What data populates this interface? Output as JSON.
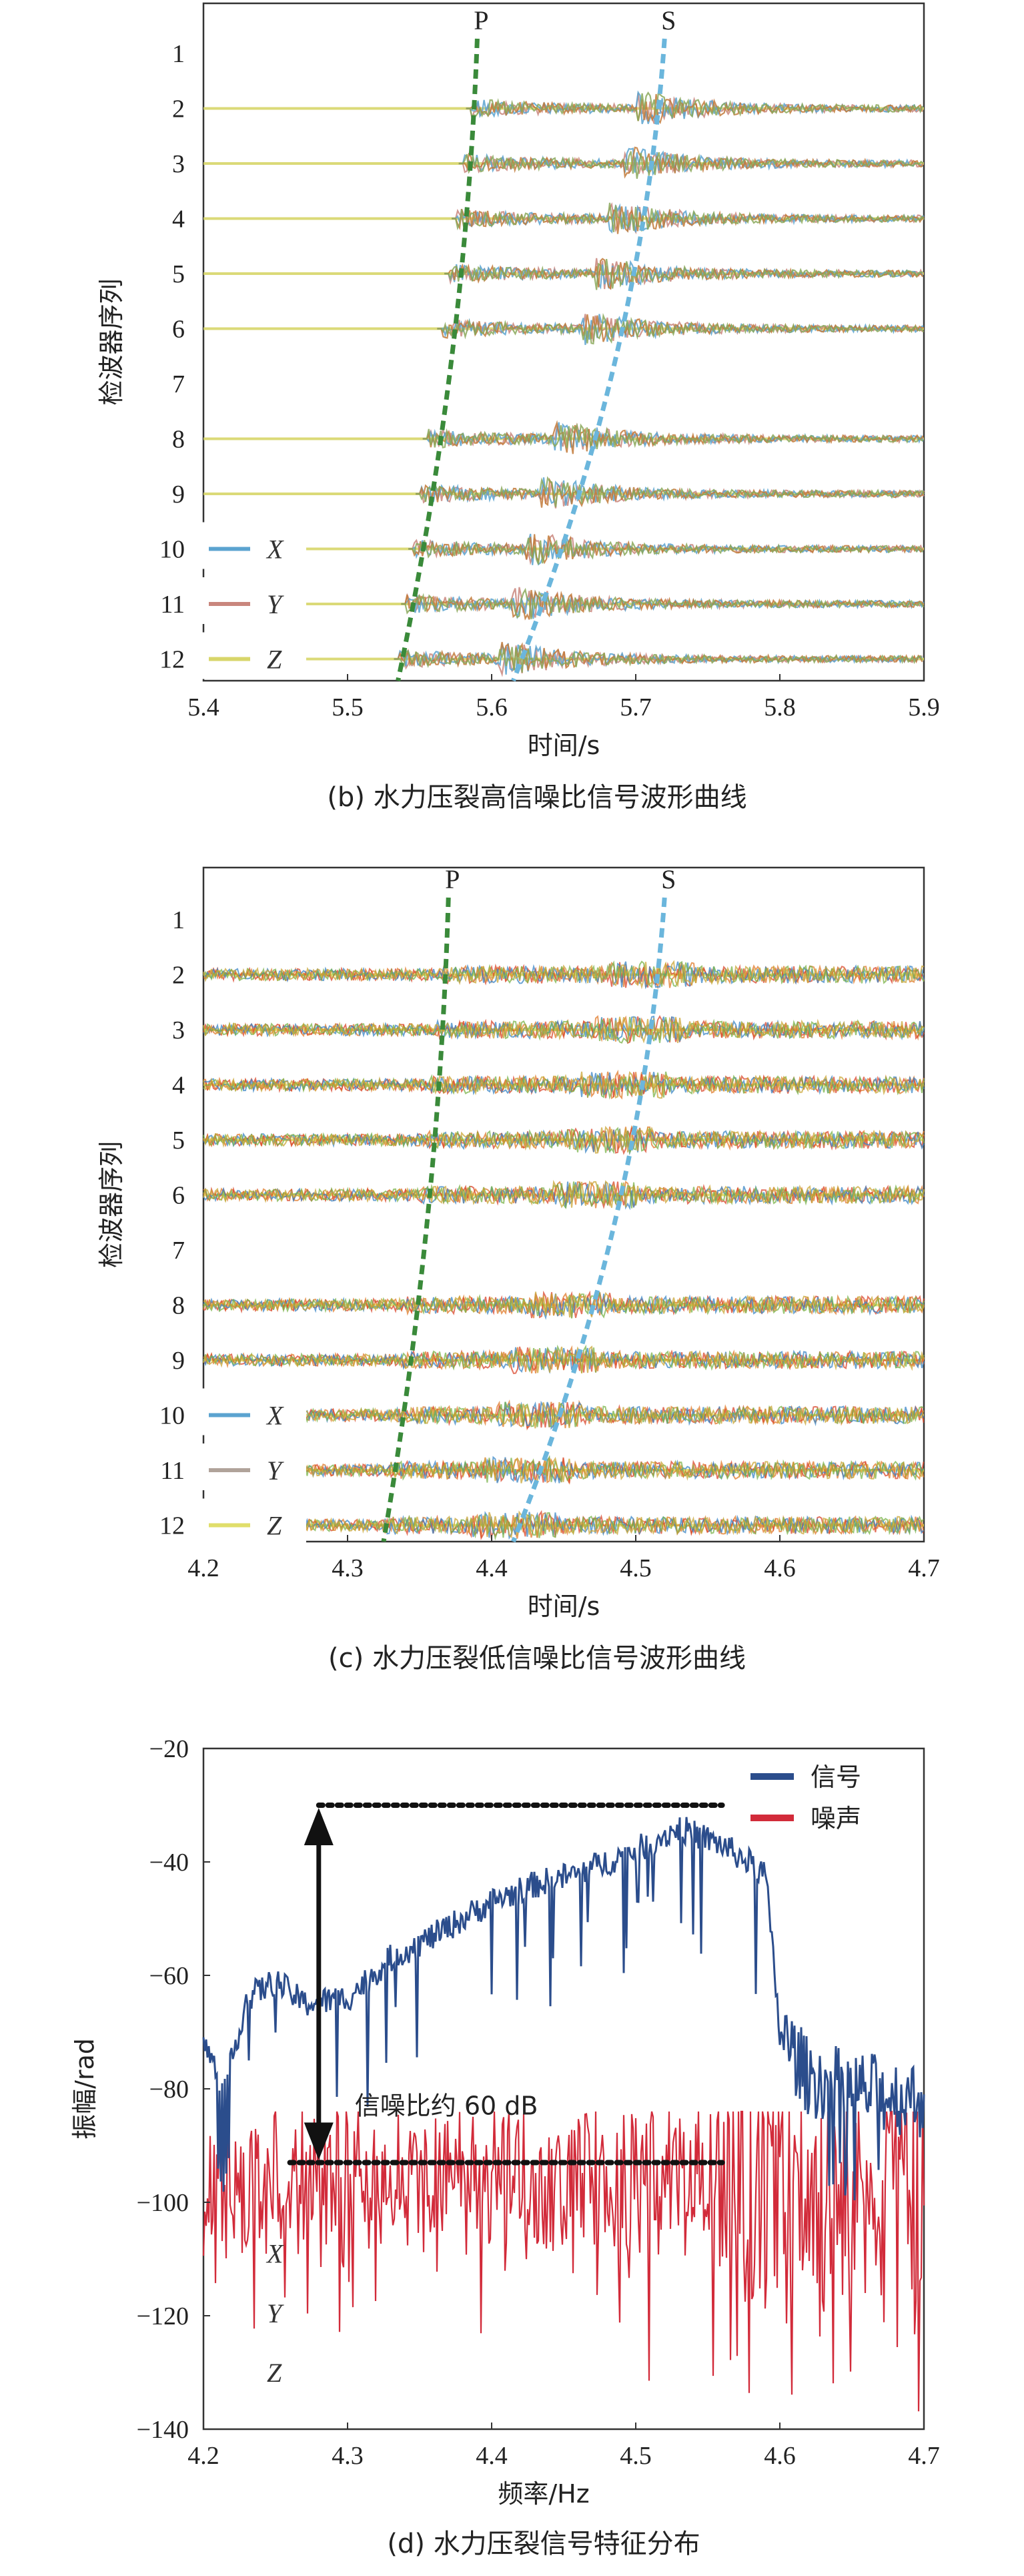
{
  "chart_data": [
    {
      "id": "b",
      "type": "line",
      "caption": "(b) 水力压裂高信噪比信号波形曲线",
      "xlabel": "时间/s",
      "ylabel": "检波器序列",
      "xlim": [
        5.4,
        5.9
      ],
      "x_ticks": [
        "5.4",
        "5.5",
        "5.6",
        "5.7",
        "5.8",
        "5.9"
      ],
      "y_ticks": [
        "1",
        "2",
        "3",
        "4",
        "5",
        "6",
        "7",
        "8",
        "9",
        "10",
        "11",
        "12"
      ],
      "traces_with_data": [
        2,
        3,
        4,
        5,
        6,
        8,
        9,
        10,
        11,
        12
      ],
      "legend": [
        {
          "label": "X",
          "color": "#5ba3d0"
        },
        {
          "label": "Y",
          "color": "#c9867d"
        },
        {
          "label": "Z",
          "color": "#d8d66a"
        }
      ],
      "picks": [
        {
          "label": "P",
          "color": "#3a8a3a",
          "top_time": 5.59,
          "bottom_time": 5.535
        },
        {
          "label": "S",
          "color": "#6bb6dc",
          "top_time": 5.72,
          "bottom_time": 5.615
        }
      ],
      "noise_level": "high-snr"
    },
    {
      "id": "c",
      "type": "line",
      "caption": "(c) 水力压裂低信噪比信号波形曲线",
      "xlabel": "时间/s",
      "ylabel": "检波器序列",
      "xlim": [
        4.2,
        4.7
      ],
      "x_ticks": [
        "4.2",
        "4.3",
        "4.4",
        "4.5",
        "4.6",
        "4.7"
      ],
      "y_ticks": [
        "1",
        "2",
        "3",
        "4",
        "5",
        "6",
        "7",
        "8",
        "9",
        "10",
        "11",
        "12"
      ],
      "traces_with_data": [
        2,
        3,
        4,
        5,
        6,
        8,
        9,
        10,
        11,
        12
      ],
      "legend": [
        {
          "label": "X",
          "color": "#5ba3d0"
        },
        {
          "label": "Y",
          "color": "#b0a39a"
        },
        {
          "label": "Z",
          "color": "#e0de6a"
        }
      ],
      "picks": [
        {
          "label": "P",
          "color": "#3a8a3a",
          "top_time": 4.37,
          "bottom_time": 4.325
        },
        {
          "label": "S",
          "color": "#6bb6dc",
          "top_time": 4.52,
          "bottom_time": 4.415
        }
      ],
      "noise_level": "low-snr"
    },
    {
      "id": "d",
      "type": "line",
      "caption": "(d) 水力压裂信号特征分布",
      "xlabel": "频率/Hz",
      "ylabel": "振幅/rad",
      "xlim": [
        4.2,
        4.7
      ],
      "ylim": [
        -140,
        -20
      ],
      "x_ticks": [
        "4.2",
        "4.3",
        "4.4",
        "4.5",
        "4.6",
        "4.7"
      ],
      "y_ticks": [
        "-20",
        "-40",
        "-60",
        "-80",
        "-100",
        "-120",
        "-140"
      ],
      "series": [
        {
          "name": "信号",
          "color": "#2b4d8c"
        },
        {
          "name": "噪声",
          "color": "#d22b3a"
        }
      ],
      "signal_envelope": {
        "x": [
          4.2,
          4.215,
          4.23,
          4.25,
          4.27,
          4.3,
          4.33,
          4.36,
          4.4,
          4.43,
          4.46,
          4.5,
          4.53,
          4.56,
          4.59,
          4.6,
          4.62,
          4.65,
          4.7
        ],
        "y": [
          -72,
          -80,
          -64,
          -61,
          -65,
          -64,
          -57,
          -53,
          -47,
          -44,
          -42,
          -38,
          -34,
          -37,
          -42,
          -70,
          -78,
          -80,
          -82
        ]
      },
      "noise_mean": -96,
      "annotation": {
        "text": "信噪比约 60 dB",
        "top_level": -30,
        "bottom_level": -93,
        "x_start": 4.28,
        "x_end_top": 4.56,
        "x_start_bottom": 4.26,
        "x_end_bottom": 4.56
      },
      "faint_legend": [
        "X",
        "Y",
        "Z"
      ]
    }
  ]
}
